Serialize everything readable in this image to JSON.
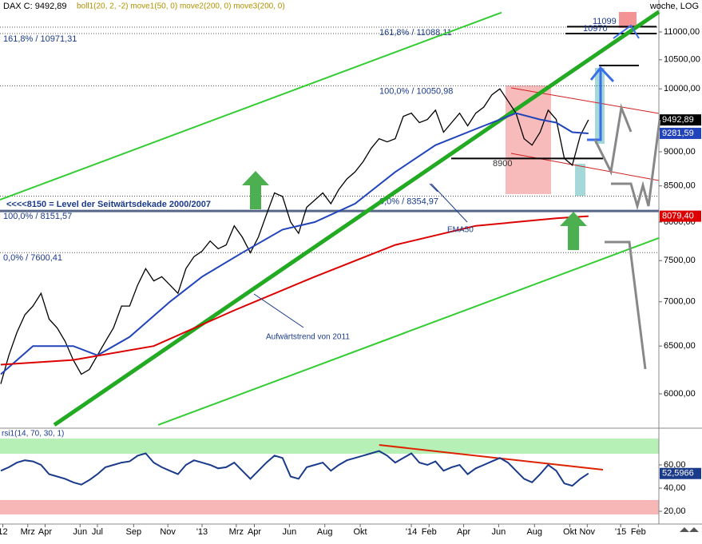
{
  "chart_data": [
    {
      "type": "line",
      "title": "DAX C: 9492,89",
      "subtitle": "boll1(20, 2, -2) move1(50, 0) move2(200, 0) move3(200, 0)",
      "timeframe": "woche, LOG",
      "log": true,
      "xlim": [
        1.8,
        165.5
      ],
      "ylim": [
        5672,
        11605
      ],
      "yticks": [
        {
          "value": 6000,
          "label": "6000,00"
        },
        {
          "value": 6500,
          "label": "6500,00"
        },
        {
          "value": 7000,
          "label": "7000,00"
        },
        {
          "value": 7500,
          "label": "7500,00"
        },
        {
          "value": 8000,
          "label": "8000,00"
        },
        {
          "value": 8500,
          "label": "8500,00"
        },
        {
          "value": 9000,
          "label": "9000,00"
        },
        {
          "value": 9500,
          "label": "9500,00"
        },
        {
          "value": 10000,
          "label": "10000,00"
        },
        {
          "value": 10500,
          "label": "10500,00"
        },
        {
          "value": 11000,
          "label": "11000,00"
        }
      ],
      "series": [
        {
          "color": "#000000",
          "x": [
            2,
            4,
            6,
            8,
            10,
            12,
            14,
            16,
            18,
            20,
            22,
            24,
            26,
            28,
            30,
            32,
            34,
            36,
            38,
            40,
            42,
            44,
            46,
            48,
            50,
            52,
            54,
            56,
            58,
            60,
            62,
            64,
            66,
            68,
            70,
            72,
            74,
            76,
            78,
            80,
            82,
            84,
            86,
            88,
            90,
            92,
            94,
            96,
            98,
            100,
            102,
            104,
            106,
            108,
            110,
            112,
            114,
            116,
            118,
            120,
            122,
            124,
            126,
            128,
            130,
            132,
            134,
            136,
            138,
            140,
            142,
            144,
            146,
            148
          ],
          "values": [
            6100,
            6400,
            6650,
            6850,
            6950,
            7100,
            6800,
            6700,
            6550,
            6350,
            6200,
            6250,
            6400,
            6550,
            6700,
            6950,
            6950,
            7200,
            7400,
            7250,
            7300,
            7200,
            7100,
            7400,
            7550,
            7620,
            7750,
            7650,
            7700,
            7950,
            7800,
            7600,
            7800,
            8100,
            8400,
            8350,
            8000,
            7850,
            8200,
            8300,
            8400,
            8250,
            8450,
            8600,
            8700,
            8850,
            9050,
            9200,
            9150,
            9200,
            9550,
            9600,
            9450,
            9500,
            9650,
            9300,
            9450,
            9600,
            9400,
            9600,
            9700,
            9900,
            10000,
            9800,
            9600,
            9200,
            9100,
            9300,
            9650,
            9500,
            8900,
            8800,
            9250,
            9492.89
          ],
          "end_label": {
            "value": 9492.89,
            "label": "9492,89"
          }
        },
        {
          "color": "#2244bb",
          "x": [
            2,
            10,
            20,
            26,
            34,
            44,
            52,
            62,
            72,
            80,
            90,
            100,
            110,
            120,
            130,
            136,
            140,
            144,
            148
          ],
          "values": [
            6200,
            6500,
            6500,
            6400,
            6600,
            7000,
            7300,
            7600,
            7900,
            8000,
            8250,
            8700,
            9100,
            9350,
            9600,
            9500,
            9450,
            9300,
            9281.59
          ],
          "end_label": {
            "value": 9281.59,
            "label": "9281,59"
          }
        },
        {
          "color": "#dd0000",
          "x": [
            2,
            20,
            40,
            60,
            80,
            100,
            120,
            140,
            148
          ],
          "values": [
            6300,
            6350,
            6500,
            6900,
            7300,
            7700,
            7950,
            8050,
            8079.4
          ],
          "end_label": {
            "value": 8079.4,
            "label": "8079,40"
          }
        }
      ],
      "trendlines": [
        {
          "color": "#22aa22",
          "width": 5,
          "x": [
            15.3,
            165.5
          ],
          "values": [
            5695,
            11378
          ]
        },
        {
          "color": "#33cc33",
          "width": 2,
          "x": [
            1.8,
            126.4
          ],
          "values": [
            8305,
            11364
          ]
        },
        {
          "color": "#33cc33",
          "width": 2,
          "x": [
            41.1,
            165.5
          ],
          "values": [
            5695,
            7790
          ]
        }
      ],
      "levels": [
        {
          "value": 10971.31,
          "label": "161,8% / 10971,31"
        },
        {
          "value": 11088.11,
          "label": "161,8% / 11088,11"
        },
        {
          "value": 10050.98,
          "label": "100,0% / 10050,98"
        },
        {
          "value": 8354.97,
          "label": "0,0% / 8354,97"
        },
        {
          "value": 8151.57,
          "label": "100,0% / 8151,57"
        },
        {
          "value": 7600.41,
          "label": "0,0% / 7600,41"
        }
      ],
      "segments": [
        {
          "value": 8900,
          "label": "8900"
        },
        {
          "value": 11099,
          "label": "11099"
        },
        {
          "value": 10970,
          "label": "10970"
        }
      ],
      "decade_level": {
        "value": 8150,
        "label": "<<<<8150 = Level der Seitwärtsdekade 2000/2007"
      },
      "annotations": [
        "EMA50",
        "Aufwärtstrend von 2011"
      ]
    },
    {
      "type": "line",
      "title": "rsi1(14, 70, 30, 1)",
      "xlim": [
        1.8,
        165.5
      ],
      "ylim": [
        9.7,
        91
      ],
      "yticks": [
        {
          "value": 20,
          "label": "20,00"
        },
        {
          "value": 40,
          "label": "40,00"
        },
        {
          "value": 60,
          "label": "60,00"
        }
      ],
      "xticks": [
        {
          "value": 2.5,
          "label": "12"
        },
        {
          "value": 8.7,
          "label": "Mrz"
        },
        {
          "value": 13,
          "label": "Apr"
        },
        {
          "value": 21.7,
          "label": "Jun"
        },
        {
          "value": 26,
          "label": "Jul"
        },
        {
          "value": 35,
          "label": "Sep"
        },
        {
          "value": 43.5,
          "label": "Nov"
        },
        {
          "value": 52,
          "label": "'13"
        },
        {
          "value": 60.5,
          "label": "Mrz"
        },
        {
          "value": 65,
          "label": "Apr"
        },
        {
          "value": 73.7,
          "label": "Jun"
        },
        {
          "value": 82.5,
          "label": "Aug"
        },
        {
          "value": 91.3,
          "label": "Okt"
        },
        {
          "value": 104,
          "label": "'14"
        },
        {
          "value": 108.4,
          "label": "Feb"
        },
        {
          "value": 117,
          "label": "Apr"
        },
        {
          "value": 125.7,
          "label": "Jun"
        },
        {
          "value": 134.6,
          "label": "Aug"
        },
        {
          "value": 143.4,
          "label": "Okt"
        },
        {
          "value": 147.7,
          "label": "Nov"
        },
        {
          "value": 156,
          "label": "'15"
        },
        {
          "value": 160.4,
          "label": "Feb"
        }
      ],
      "series": [
        {
          "color": "#1a3a8a",
          "x": [
            2,
            4,
            6,
            8,
            10,
            12,
            14,
            16,
            18,
            20,
            22,
            24,
            26,
            28,
            30,
            32,
            34,
            36,
            38,
            40,
            42,
            44,
            46,
            48,
            50,
            52,
            54,
            56,
            58,
            60,
            62,
            64,
            66,
            68,
            70,
            72,
            74,
            76,
            78,
            80,
            82,
            84,
            86,
            88,
            90,
            92,
            94,
            96,
            98,
            100,
            102,
            104,
            106,
            108,
            110,
            112,
            114,
            116,
            118,
            120,
            122,
            124,
            126,
            128,
            130,
            132,
            134,
            136,
            138,
            140,
            142,
            144,
            146,
            148
          ],
          "values": [
            55,
            58,
            62,
            64,
            63,
            60,
            52,
            50,
            48,
            45,
            43,
            47,
            52,
            58,
            60,
            62,
            63,
            68,
            70,
            62,
            58,
            55,
            52,
            60,
            64,
            62,
            60,
            57,
            58,
            62,
            55,
            48,
            55,
            62,
            68,
            66,
            50,
            48,
            58,
            60,
            62,
            55,
            60,
            64,
            66,
            68,
            70,
            72,
            68,
            62,
            66,
            70,
            62,
            60,
            63,
            55,
            58,
            60,
            52,
            57,
            60,
            63,
            66,
            62,
            55,
            48,
            45,
            52,
            60,
            55,
            44,
            42,
            48,
            52.5966
          ],
          "end_label": {
            "value": 52.5966,
            "label": "52,5966"
          }
        }
      ],
      "trendlines": [
        {
          "color": "#dd2200",
          "width": 2,
          "x": [
            96,
            151.6
          ],
          "values": [
            77.2,
            55.9
          ]
        }
      ]
    }
  ]
}
